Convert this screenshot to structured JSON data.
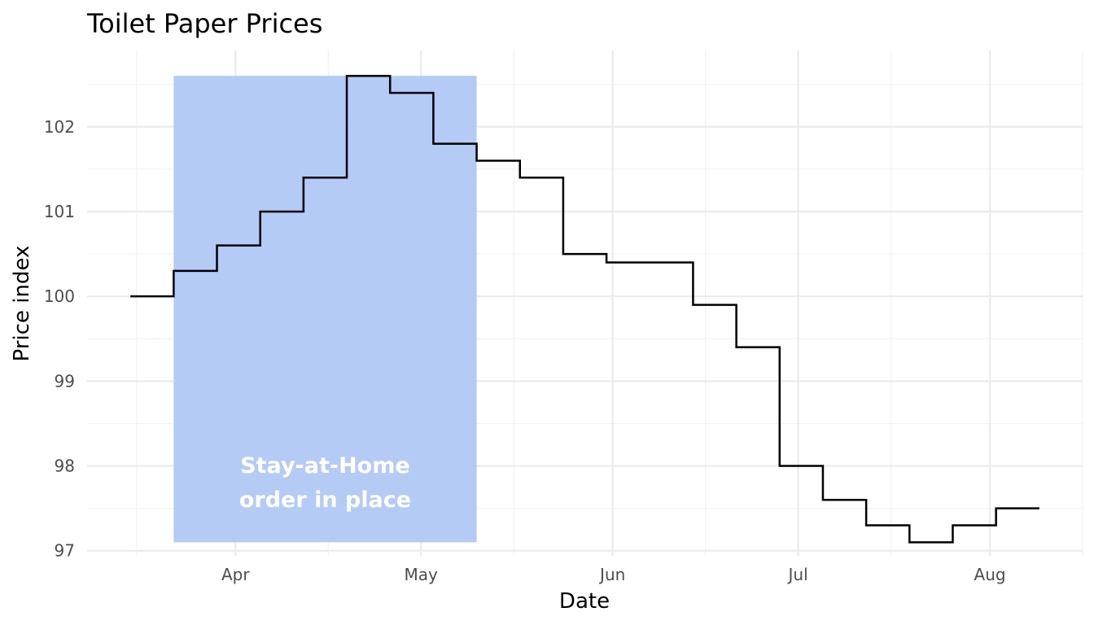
{
  "chart_data": {
    "type": "line",
    "style": "step",
    "title": "Toilet Paper Prices",
    "xlabel": "Date",
    "ylabel": "Price index",
    "grid": true,
    "legend": "none",
    "xlim": [
      "2020-03-08",
      "2020-08-16"
    ],
    "ylim": [
      96.94,
      102.9
    ],
    "x_ticks": [
      {
        "date": "2020-04-01",
        "label": "Apr"
      },
      {
        "date": "2020-05-01",
        "label": "May"
      },
      {
        "date": "2020-06-01",
        "label": "Jun"
      },
      {
        "date": "2020-07-01",
        "label": "Jul"
      },
      {
        "date": "2020-08-01",
        "label": "Aug"
      }
    ],
    "x_minor_ticks": [
      "2020-03-16",
      "2020-04-16",
      "2020-05-16",
      "2020-06-16",
      "2020-07-16",
      "2020-08-16"
    ],
    "y_ticks": [
      97,
      98,
      99,
      100,
      101,
      102
    ],
    "series": [
      {
        "color": "#000000",
        "x": [
          "2020-03-15",
          "2020-03-22",
          "2020-03-29",
          "2020-04-05",
          "2020-04-12",
          "2020-04-19",
          "2020-04-26",
          "2020-05-03",
          "2020-05-10",
          "2020-05-17",
          "2020-05-24",
          "2020-05-31",
          "2020-06-07",
          "2020-06-14",
          "2020-06-21",
          "2020-06-28",
          "2020-07-05",
          "2020-07-12",
          "2020-07-19",
          "2020-07-26",
          "2020-08-02",
          "2020-08-09"
        ],
        "y": [
          100.0,
          100.3,
          100.6,
          101.0,
          101.4,
          102.6,
          102.4,
          101.8,
          101.6,
          101.4,
          100.5,
          100.4,
          100.4,
          99.9,
          99.4,
          98.0,
          97.6,
          97.3,
          97.1,
          97.3,
          97.5,
          97.5
        ]
      }
    ],
    "annotations": [
      {
        "type": "shaded-region",
        "x_start": "2020-03-22",
        "x_end": "2020-05-10",
        "y_start": 97.1,
        "y_end": 102.6,
        "color": "#b0c8f4",
        "text_lines": [
          "Stay-at-Home",
          "order in place"
        ],
        "text_color": "#ffffff"
      }
    ]
  }
}
